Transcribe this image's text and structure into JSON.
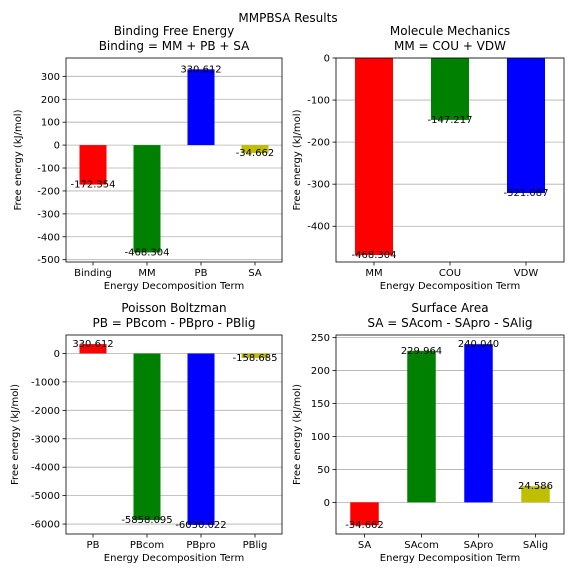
{
  "suptitle": "MMPBSA Results",
  "chart_data": [
    {
      "type": "bar",
      "title": "Binding Free Energy\nBinding = MM + PB + SA",
      "xlabel": "Energy Decomposition Term",
      "ylabel": "Free energy (kJ/mol)",
      "categories": [
        "Binding",
        "MM",
        "PB",
        "SA"
      ],
      "values": [
        -172.354,
        -468.304,
        330.612,
        -34.662
      ],
      "labels": [
        "-172.354",
        "-468.304",
        "330.612",
        "-34.662"
      ],
      "colors": [
        "#ff0000",
        "#008000",
        "#0000ff",
        "#bfbf00"
      ],
      "ylim": [
        -510,
        380
      ],
      "yticks": [
        -500,
        -400,
        -300,
        -200,
        -100,
        0,
        100,
        200,
        300
      ],
      "grid": true
    },
    {
      "type": "bar",
      "title": "Molecule Mechanics\nMM = COU + VDW",
      "xlabel": "Energy Decomposition Term",
      "ylabel": "Free energy (kJ/mol)",
      "categories": [
        "MM",
        "COU",
        "VDW"
      ],
      "values": [
        -468.304,
        -147.217,
        -321.087
      ],
      "labels": [
        "-468.304",
        "-147.217",
        "-321.087"
      ],
      "colors": [
        "#ff0000",
        "#008000",
        "#0000ff"
      ],
      "ylim": [
        -485,
        0
      ],
      "yticks": [
        -400,
        -300,
        -200,
        -100,
        0
      ],
      "grid": true
    },
    {
      "type": "bar",
      "title": "Poisson Boltzman\nPB = PBcom - PBpro - PBlig",
      "xlabel": "Energy Decomposition Term",
      "ylabel": "Free energy (kJ/mol)",
      "categories": [
        "PB",
        "PBcom",
        "PBpro",
        "PBlig"
      ],
      "values": [
        330.612,
        -5858.095,
        -6030.022,
        -158.685
      ],
      "labels": [
        "330.612",
        "-5858.095",
        "-6030.022",
        "-158.685"
      ],
      "colors": [
        "#ff0000",
        "#008000",
        "#0000ff",
        "#bfbf00"
      ],
      "ylim": [
        -6350,
        650
      ],
      "yticks": [
        -6000,
        -5000,
        -4000,
        -3000,
        -2000,
        -1000,
        0
      ],
      "grid": true
    },
    {
      "type": "bar",
      "title": "Surface Area\nSA = SAcom - SApro - SAlig",
      "xlabel": "Energy Decomposition Term",
      "ylabel": "Free energy (kJ/mol)",
      "categories": [
        "SA",
        "SAcom",
        "SApro",
        "SAlig"
      ],
      "values": [
        -34.662,
        229.964,
        240.04,
        24.586
      ],
      "labels": [
        "-34.662",
        "229.964",
        "240.040",
        "24.586"
      ],
      "colors": [
        "#ff0000",
        "#008000",
        "#0000ff",
        "#bfbf00"
      ],
      "ylim": [
        -48,
        254
      ],
      "yticks": [
        0,
        50,
        100,
        150,
        200,
        250
      ],
      "grid": true
    }
  ]
}
